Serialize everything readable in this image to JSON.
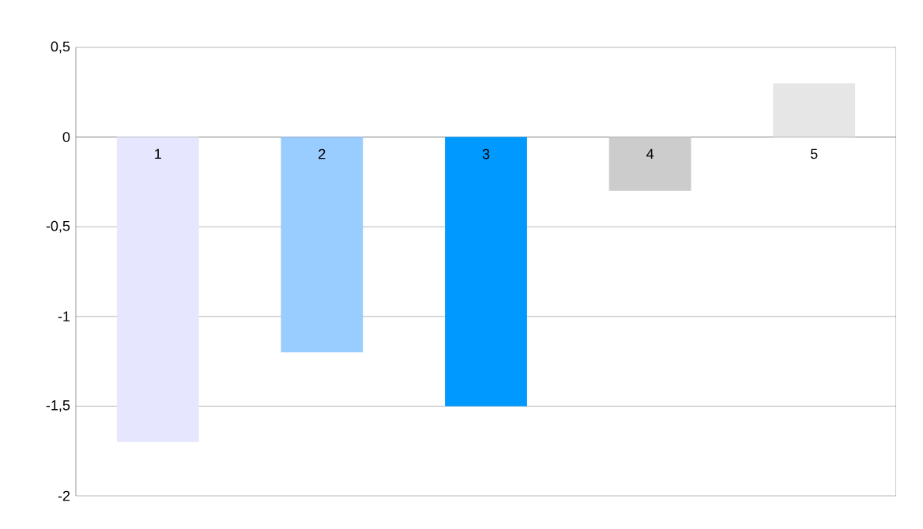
{
  "chart_data": {
    "type": "bar",
    "categories": [
      "1",
      "2",
      "3",
      "4",
      "5"
    ],
    "values": [
      -1.7,
      -1.2,
      -1.5,
      -0.3,
      0.3
    ],
    "colors": [
      "#e6e6ff",
      "#99ccff",
      "#0099ff",
      "#cccccc",
      "#e6e6e6"
    ],
    "ylim": [
      -2,
      0.5
    ],
    "yticks": [
      {
        "value": -2,
        "label": "-2"
      },
      {
        "value": -1.5,
        "label": "-1,5"
      },
      {
        "value": -1,
        "label": "-1"
      },
      {
        "value": -0.5,
        "label": "-0,5"
      },
      {
        "value": 0,
        "label": "0"
      },
      {
        "value": 0.5,
        "label": "0,5"
      }
    ],
    "grid": "y"
  }
}
